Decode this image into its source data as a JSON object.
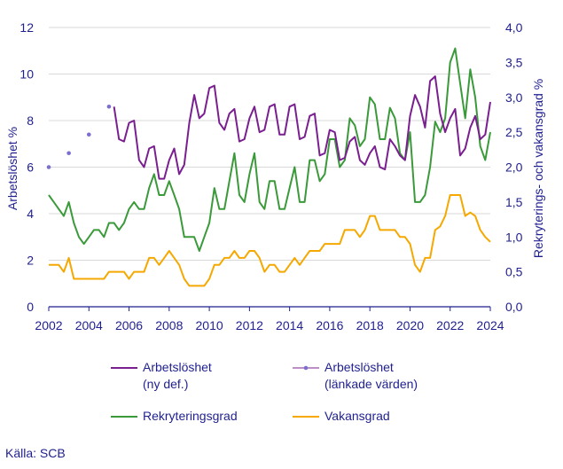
{
  "chart_data": {
    "type": "line",
    "y_left": {
      "label": "Arbetslöshet  %",
      "lim": [
        0,
        12
      ],
      "ticks": [
        "0",
        "2",
        "4",
        "6",
        "8",
        "10",
        "12"
      ]
    },
    "y_right": {
      "label": "Rekryterings- och vakansgrad %",
      "lim": [
        0,
        4
      ],
      "ticks": [
        "0,0",
        "0,5",
        "1,0",
        "1,5",
        "2,0",
        "2,5",
        "3,0",
        "3,5",
        "4,0"
      ]
    },
    "x_ticks": [
      "2002",
      "2004",
      "2006",
      "2008",
      "2010",
      "2012",
      "2014",
      "2016",
      "2018",
      "2020",
      "2022",
      "2024"
    ],
    "x_range": [
      2002,
      2024
    ],
    "grid": "horizontal",
    "legend_position": "bottom",
    "source": "Källa: SCB",
    "series": [
      {
        "name": "Arbetslöshet\n(ny def.)",
        "axis": "left",
        "color": "#7a1f8f",
        "style": "line",
        "x": [
          2005.25,
          2005.5,
          2005.75,
          2006.0,
          2006.25,
          2006.5,
          2006.75,
          2007.0,
          2007.25,
          2007.5,
          2007.75,
          2008.0,
          2008.25,
          2008.5,
          2008.75,
          2009.0,
          2009.25,
          2009.5,
          2009.75,
          2010.0,
          2010.25,
          2010.5,
          2010.75,
          2011.0,
          2011.25,
          2011.5,
          2011.75,
          2012.0,
          2012.25,
          2012.5,
          2012.75,
          2013.0,
          2013.25,
          2013.5,
          2013.75,
          2014.0,
          2014.25,
          2014.5,
          2014.75,
          2015.0,
          2015.25,
          2015.5,
          2015.75,
          2016.0,
          2016.25,
          2016.5,
          2016.75,
          2017.0,
          2017.25,
          2017.5,
          2017.75,
          2018.0,
          2018.25,
          2018.5,
          2018.75,
          2019.0,
          2019.25,
          2019.5,
          2019.75,
          2020.0,
          2020.25,
          2020.5,
          2020.75,
          2021.0,
          2021.25,
          2021.5,
          2021.75,
          2022.0,
          2022.25,
          2022.5,
          2022.75,
          2023.0,
          2023.25,
          2023.5,
          2023.75,
          2024.0
        ],
        "values": [
          8.6,
          7.2,
          7.1,
          7.9,
          8.0,
          6.3,
          6.0,
          6.8,
          6.9,
          5.5,
          5.5,
          6.3,
          6.8,
          5.7,
          6.1,
          7.9,
          9.1,
          8.1,
          8.3,
          9.4,
          9.5,
          7.9,
          7.6,
          8.3,
          8.5,
          7.1,
          7.2,
          8.1,
          8.6,
          7.5,
          7.6,
          8.6,
          8.7,
          7.4,
          7.4,
          8.6,
          8.7,
          7.2,
          7.3,
          8.2,
          8.3,
          6.5,
          6.6,
          7.6,
          7.5,
          6.3,
          6.4,
          7.1,
          7.3,
          6.3,
          6.1,
          6.6,
          6.9,
          6.0,
          5.9,
          7.2,
          6.9,
          6.5,
          6.3,
          8.2,
          9.1,
          8.6,
          7.7,
          9.7,
          9.9,
          8.3,
          7.5,
          8.1,
          8.5,
          6.5,
          6.8,
          7.7,
          8.2,
          7.2,
          7.4,
          8.8
        ]
      },
      {
        "name": "Arbetslöshet\n(länkade värden)",
        "axis": "left",
        "color": "#7a6fcf",
        "style": "markers",
        "x": [
          2002.0,
          2003.0,
          2004.0,
          2005.0
        ],
        "values": [
          6.0,
          6.6,
          7.4,
          8.6
        ]
      },
      {
        "name": "Rekryteringsgrad",
        "axis": "right",
        "color": "#3a9a3a",
        "style": "line",
        "x": [
          2002.0,
          2002.25,
          2002.5,
          2002.75,
          2003.0,
          2003.25,
          2003.5,
          2003.75,
          2004.0,
          2004.25,
          2004.5,
          2004.75,
          2005.0,
          2005.25,
          2005.5,
          2005.75,
          2006.0,
          2006.25,
          2006.5,
          2006.75,
          2007.0,
          2007.25,
          2007.5,
          2007.75,
          2008.0,
          2008.25,
          2008.5,
          2008.75,
          2009.0,
          2009.25,
          2009.5,
          2009.75,
          2010.0,
          2010.25,
          2010.5,
          2010.75,
          2011.0,
          2011.25,
          2011.5,
          2011.75,
          2012.0,
          2012.25,
          2012.5,
          2012.75,
          2013.0,
          2013.25,
          2013.5,
          2013.75,
          2014.0,
          2014.25,
          2014.5,
          2014.75,
          2015.0,
          2015.25,
          2015.5,
          2015.75,
          2016.0,
          2016.25,
          2016.5,
          2016.75,
          2017.0,
          2017.25,
          2017.5,
          2017.75,
          2018.0,
          2018.25,
          2018.5,
          2018.75,
          2019.0,
          2019.25,
          2019.5,
          2019.75,
          2020.0,
          2020.25,
          2020.5,
          2020.75,
          2021.0,
          2021.25,
          2021.5,
          2021.75,
          2022.0,
          2022.25,
          2022.5,
          2022.75,
          2023.0,
          2023.25,
          2023.5,
          2023.75,
          2024.0
        ],
        "values": [
          1.6,
          1.5,
          1.4,
          1.3,
          1.5,
          1.2,
          1.0,
          0.9,
          1.0,
          1.1,
          1.1,
          1.0,
          1.2,
          1.2,
          1.1,
          1.2,
          1.4,
          1.5,
          1.4,
          1.4,
          1.7,
          1.9,
          1.6,
          1.6,
          1.8,
          1.6,
          1.4,
          1.0,
          1.0,
          1.0,
          0.8,
          1.0,
          1.2,
          1.7,
          1.4,
          1.4,
          1.8,
          2.2,
          1.6,
          1.5,
          1.9,
          2.2,
          1.5,
          1.4,
          1.8,
          1.8,
          1.4,
          1.4,
          1.7,
          2.0,
          1.5,
          1.5,
          2.1,
          2.1,
          1.8,
          1.9,
          2.4,
          2.4,
          2.0,
          2.1,
          2.7,
          2.6,
          2.3,
          2.4,
          3.0,
          2.9,
          2.4,
          2.4,
          2.85,
          2.7,
          2.2,
          2.1,
          2.5,
          1.5,
          1.5,
          1.6,
          2.0,
          2.65,
          2.5,
          2.7,
          3.5,
          3.7,
          3.2,
          2.7,
          3.4,
          3.0,
          2.3,
          2.1,
          2.5
        ]
      },
      {
        "name": "Vakansgrad",
        "axis": "right",
        "color": "#f5a800",
        "style": "line",
        "x": [
          2002.0,
          2002.25,
          2002.5,
          2002.75,
          2003.0,
          2003.25,
          2003.5,
          2003.75,
          2004.0,
          2004.25,
          2004.5,
          2004.75,
          2005.0,
          2005.25,
          2005.5,
          2005.75,
          2006.0,
          2006.25,
          2006.5,
          2006.75,
          2007.0,
          2007.25,
          2007.5,
          2007.75,
          2008.0,
          2008.25,
          2008.5,
          2008.75,
          2009.0,
          2009.25,
          2009.5,
          2009.75,
          2010.0,
          2010.25,
          2010.5,
          2010.75,
          2011.0,
          2011.25,
          2011.5,
          2011.75,
          2012.0,
          2012.25,
          2012.5,
          2012.75,
          2013.0,
          2013.25,
          2013.5,
          2013.75,
          2014.0,
          2014.25,
          2014.5,
          2014.75,
          2015.0,
          2015.25,
          2015.5,
          2015.75,
          2016.0,
          2016.25,
          2016.5,
          2016.75,
          2017.0,
          2017.25,
          2017.5,
          2017.75,
          2018.0,
          2018.25,
          2018.5,
          2018.75,
          2019.0,
          2019.25,
          2019.5,
          2019.75,
          2020.0,
          2020.25,
          2020.5,
          2020.75,
          2021.0,
          2021.25,
          2021.5,
          2021.75,
          2022.0,
          2022.25,
          2022.5,
          2022.75,
          2023.0,
          2023.25,
          2023.5,
          2023.75,
          2024.0
        ],
        "values": [
          0.6,
          0.6,
          0.6,
          0.5,
          0.7,
          0.4,
          0.4,
          0.4,
          0.4,
          0.4,
          0.4,
          0.4,
          0.5,
          0.5,
          0.5,
          0.5,
          0.4,
          0.5,
          0.5,
          0.5,
          0.7,
          0.7,
          0.6,
          0.7,
          0.8,
          0.7,
          0.6,
          0.4,
          0.3,
          0.3,
          0.3,
          0.3,
          0.4,
          0.6,
          0.6,
          0.7,
          0.7,
          0.8,
          0.7,
          0.7,
          0.8,
          0.8,
          0.7,
          0.5,
          0.6,
          0.6,
          0.5,
          0.5,
          0.6,
          0.7,
          0.6,
          0.7,
          0.8,
          0.8,
          0.8,
          0.9,
          0.9,
          0.9,
          0.9,
          1.1,
          1.1,
          1.1,
          1.0,
          1.1,
          1.3,
          1.3,
          1.1,
          1.1,
          1.1,
          1.1,
          1.0,
          1.0,
          0.9,
          0.6,
          0.5,
          0.7,
          0.7,
          1.1,
          1.15,
          1.3,
          1.6,
          1.6,
          1.6,
          1.3,
          1.35,
          1.3,
          1.1,
          1.0,
          0.93
        ]
      }
    ]
  }
}
